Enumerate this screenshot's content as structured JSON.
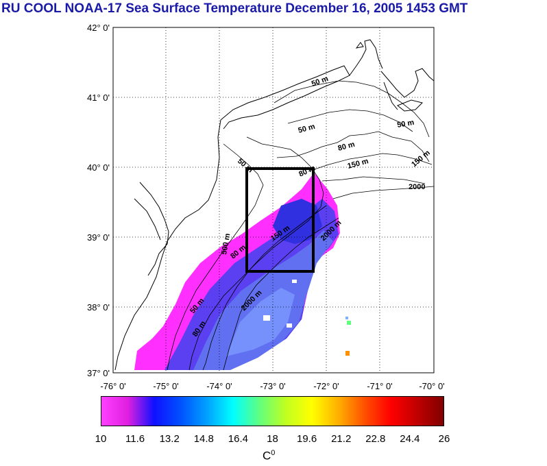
{
  "title": "RU COOL  NOAA-17 Sea Surface Temperature December 16, 2005 1453 GMT",
  "lat_labels": [
    "42° 0'",
    "41° 0'",
    "40° 0'",
    "39° 0'",
    "38° 0'",
    "37° 0'"
  ],
  "lon_labels": [
    "-76° 0'",
    "-75° 0'",
    "-74° 0'",
    "-73° 0'",
    "-72° 0'",
    "-71° 0'",
    "-70° 0'"
  ],
  "contour_labels": {
    "c50a": "50 m",
    "c50b": "50 m",
    "c50c": "50 m",
    "c50d": "50 m",
    "c50e": "50 m",
    "c80a": "80 m",
    "c80b": "80 m",
    "c80c": "80 m",
    "c80d": "80 m",
    "c150a": "150 m",
    "c150b": "150 m",
    "c150c": "150 m",
    "c2000a": "2000",
    "c2000b": "2000 m",
    "c2000c": "2000 m",
    "c500": "500 m"
  },
  "colorbar": {
    "labels": [
      "10",
      "11.6",
      "13.2",
      "14.8",
      "16.4",
      "18",
      "19.6",
      "21.2",
      "22.8",
      "24.4",
      "26"
    ],
    "unit": "C",
    "unit_sup": "0",
    "colors": [
      "#ff40ff",
      "#e020e0",
      "#1010ff",
      "#0050ff",
      "#00a0ff",
      "#00ffff",
      "#60ff80",
      "#c0ff20",
      "#ffff00",
      "#ffb000",
      "#ff5000",
      "#ff0000",
      "#c00000",
      "#800000"
    ]
  }
}
